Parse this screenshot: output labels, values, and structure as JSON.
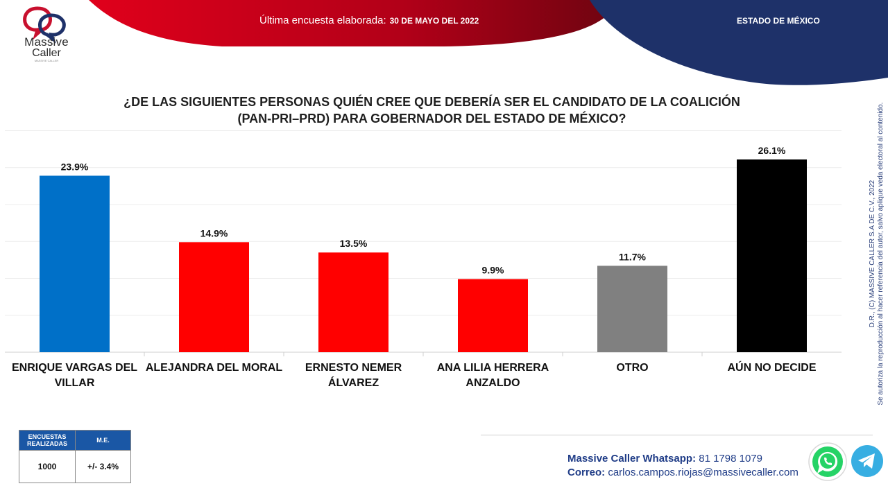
{
  "header": {
    "logo_brand": "Massive",
    "logo_brand_2": "Caller",
    "logo_tagline": "MASSIVE CALLER",
    "survey_label": "Última encuesta elaborada:",
    "survey_date": "30 DE MAYO DEL 2022",
    "region": "ESTADO DE MÉXICO",
    "colors": {
      "red_banner": "#b8001a",
      "blue_banner": "#1e3169"
    }
  },
  "question": {
    "line1": "¿DE LAS SIGUIENTES PERSONAS QUIÉN CREE QUE DEBERÍA SER EL CANDIDATO DE LA COALICIÓN",
    "line2": "(PAN-PRI–PRD) PARA GOBERNADOR  DEL ESTADO DE  MÉXICO?"
  },
  "chart_data": {
    "type": "bar",
    "categories": [
      [
        "ENRIQUE VARGAS DEL",
        "VILLAR"
      ],
      [
        "ALEJANDRA DEL MORAL"
      ],
      [
        "ERNESTO NEMER",
        "ÁLVAREZ"
      ],
      [
        "ANA LILIA HERRERA",
        "ANZALDO"
      ],
      [
        "OTRO"
      ],
      [
        "AÚN NO DECIDE"
      ]
    ],
    "values": [
      23.9,
      14.9,
      13.5,
      9.9,
      11.7,
      26.1
    ],
    "value_labels": [
      "23.9%",
      "14.9%",
      "13.5%",
      "9.9%",
      "11.7%",
      "26.1%"
    ],
    "bar_colors": [
      "#0070c8",
      "#ff0000",
      "#ff0000",
      "#ff0000",
      "#808080",
      "#000000"
    ],
    "ylim": [
      0,
      30
    ],
    "grid": true,
    "title": "",
    "xlabel": "",
    "ylabel": ""
  },
  "stats": {
    "header_surveys": [
      "ENCUESTAS",
      "REALIZADAS"
    ],
    "header_me": "M.E.",
    "surveys": "1000",
    "margin_error": "+/- 3.4%"
  },
  "contact": {
    "whatsapp_label": "Massive Caller Whatsapp:",
    "whatsapp_number": "81 1798 1079",
    "email_label": "Correo:",
    "email": "carlos.campos.riojas@massivecaller.com",
    "icons": [
      "whatsapp-icon",
      "telegram-icon"
    ]
  },
  "copyright": {
    "line1": "D.R., (C) MASSIVE CALLER S.A DE C.V., 2022",
    "line2": "Se autoriza la reproducción al hacer referencia del autor, salvo aplique veda electoral al contenido."
  }
}
